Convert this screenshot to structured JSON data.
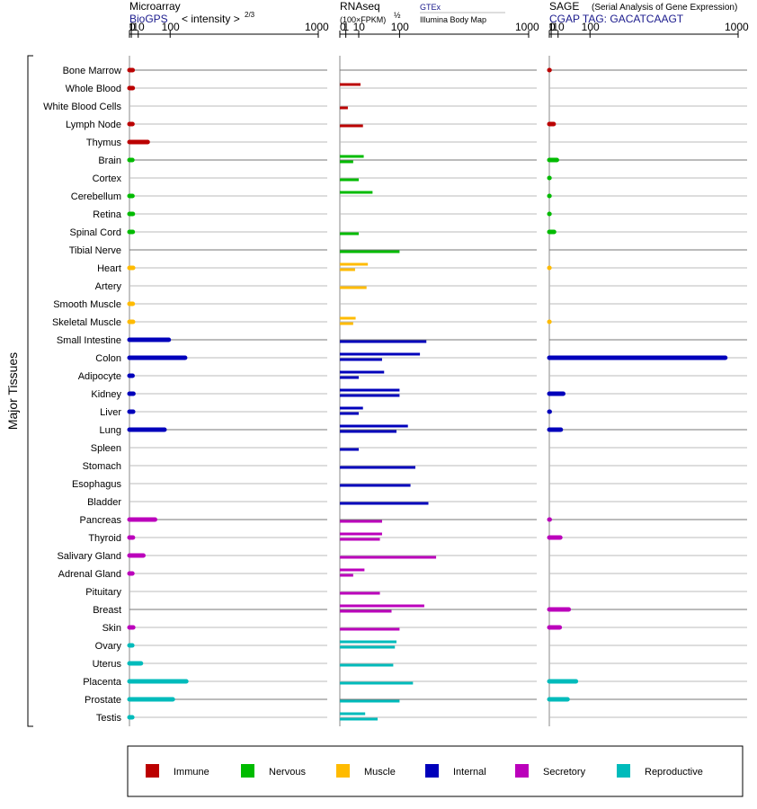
{
  "chart_data": {
    "type": "bar",
    "y_title": "Major Tissues",
    "categories": [
      "Bone Marrow",
      "Whole Blood",
      "White Blood Cells",
      "Lymph Node",
      "Thymus",
      "Brain",
      "Cortex",
      "Cerebellum",
      "Retina",
      "Spinal Cord",
      "Tibial Nerve",
      "Heart",
      "Artery",
      "Smooth Muscle",
      "Skeletal Muscle",
      "Small Intestine",
      "Colon",
      "Adipocyte",
      "Kidney",
      "Liver",
      "Lung",
      "Spleen",
      "Stomach",
      "Esophagus",
      "Bladder",
      "Pancreas",
      "Thyroid",
      "Salivary Gland",
      "Adrenal Gland",
      "Pituitary",
      "Breast",
      "Skin",
      "Ovary",
      "Uterus",
      "Placenta",
      "Prostate",
      "Testis"
    ],
    "category_group": [
      "Immune",
      "Immune",
      "Immune",
      "Immune",
      "Immune",
      "Nervous",
      "Nervous",
      "Nervous",
      "Nervous",
      "Nervous",
      "Nervous",
      "Muscle",
      "Muscle",
      "Muscle",
      "Muscle",
      "Internal",
      "Internal",
      "Internal",
      "Internal",
      "Internal",
      "Internal",
      "Internal",
      "Internal",
      "Internal",
      "Internal",
      "Secretory",
      "Secretory",
      "Secretory",
      "Secretory",
      "Secretory",
      "Secretory",
      "Secretory",
      "Reproductive",
      "Reproductive",
      "Reproductive",
      "Reproductive",
      "Reproductive"
    ],
    "colors": {
      "Immune": "#bb0000",
      "Nervous": "#00bb00",
      "Muscle": "#ffbb00",
      "Internal": "#0000bb",
      "Secretory": "#bb00bb",
      "Reproductive": "#00bbbb"
    },
    "tick_labels": [
      "0",
      "1",
      "10",
      "100",
      "1000"
    ],
    "panels": [
      {
        "name": "Microarray",
        "subtitle": "BioGPS",
        "note": "< intensity >",
        "note_exp": "2/3",
        "scale": "power-2/3",
        "xlim": [
          0,
          1000
        ],
        "values": [
          2.2,
          2.3,
          null,
          2.0,
          30,
          1.9,
          null,
          2.0,
          2.4,
          2.3,
          null,
          2.7,
          null,
          2.3,
          2.6,
          95,
          160,
          2.1,
          3.0,
          2.7,
          80,
          null,
          null,
          null,
          null,
          50,
          2.5,
          20,
          1.9,
          null,
          null,
          2.8,
          1.8,
          15,
          165,
          110,
          1.8
        ]
      },
      {
        "name": "RNAseq",
        "subtitle": "(100×FPKM)",
        "note": "GTEx",
        "note2": "Illumina Body Map",
        "note_exp": "½",
        "scale": "sqrt",
        "xlim": [
          0,
          1000
        ],
        "values": [
          null,
          [
            12,
            null
          ],
          [
            null,
            1.8
          ],
          [
            null,
            15
          ],
          null,
          [
            16,
            5
          ],
          [
            null,
            10
          ],
          [
            30,
            null
          ],
          null,
          [
            null,
            10
          ],
          [
            null,
            100
          ],
          [
            22,
            6.5
          ],
          [
            null,
            20
          ],
          null,
          [
            7,
            5
          ],
          [
            null,
            210
          ],
          [
            180,
            50
          ],
          [
            55,
            10
          ],
          [
            100,
            100
          ],
          [
            15,
            10
          ],
          [
            130,
            90
          ],
          [
            null,
            10
          ],
          [
            null,
            160
          ],
          [
            null,
            140
          ],
          [
            null,
            220
          ],
          [
            null,
            50
          ],
          [
            50,
            45
          ],
          [
            null,
            260
          ],
          [
            17,
            5
          ],
          [
            null,
            45
          ],
          [
            200,
            75
          ],
          [
            null,
            100
          ],
          [
            90,
            85
          ],
          [
            null,
            80
          ],
          [
            null,
            150
          ],
          [
            null,
            100
          ],
          [
            18,
            40
          ]
        ]
      },
      {
        "name": "SAGE",
        "subtitle": "CGAP TAG: GACATCAAGT",
        "note": "(Serial Analysis of Gene Expression)",
        "scale": "power-2/3",
        "xlim": [
          0,
          1000
        ],
        "values": [
          0.05,
          null,
          null,
          3.5,
          null,
          8,
          0.03,
          0.03,
          0.03,
          4,
          null,
          0.02,
          null,
          null,
          0.02,
          null,
          900,
          null,
          20,
          0.1,
          15,
          null,
          null,
          null,
          null,
          0.1,
          14,
          null,
          null,
          null,
          33,
          13,
          null,
          null,
          53,
          30,
          null
        ]
      }
    ],
    "legend": [
      "Immune",
      "Nervous",
      "Muscle",
      "Internal",
      "Secretory",
      "Reproductive"
    ]
  }
}
